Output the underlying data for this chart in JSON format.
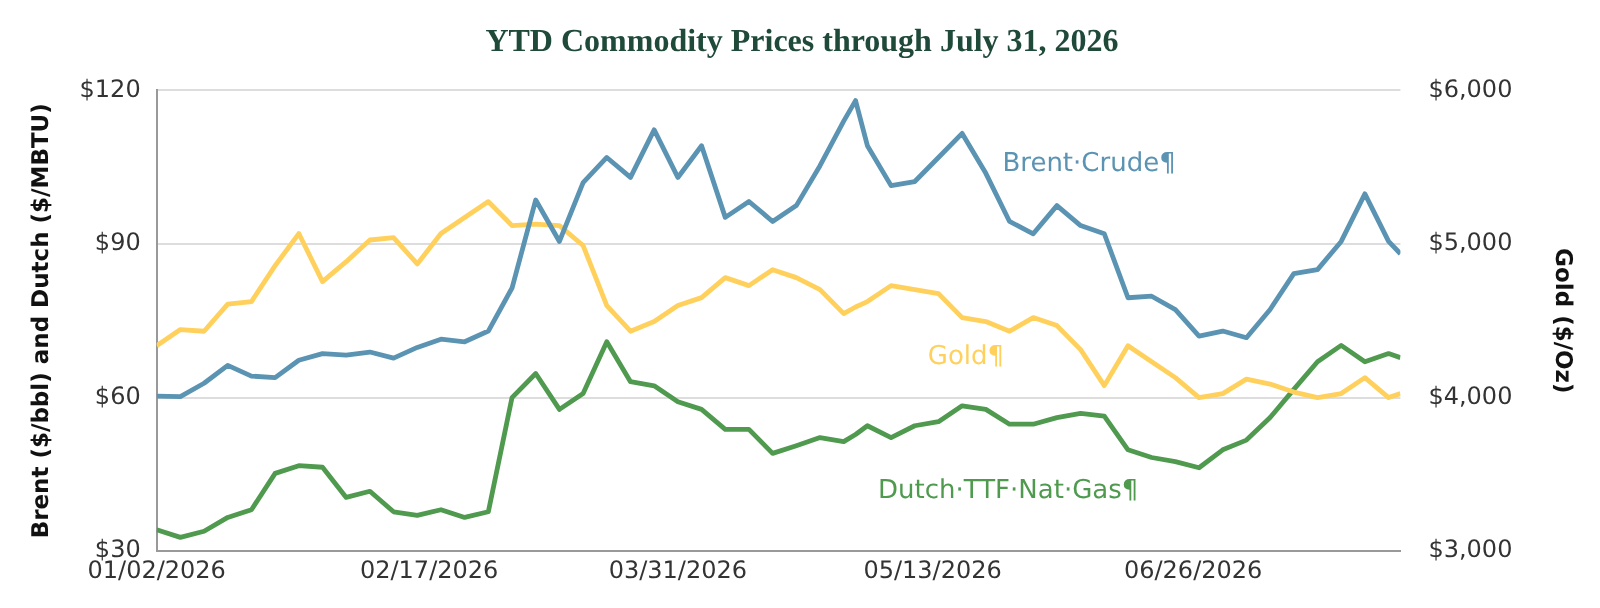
{
  "chart_data": {
    "type": "line",
    "title": "YTD Commodity Prices through July 31, 2026",
    "ylabel": "Brent ($/bbl) and Dutch ($/MBTU)",
    "y2label": "Gold ($/Oz)",
    "x": [
      "2026-01-02",
      "2026-01-06",
      "2026-01-10",
      "2026-01-14",
      "2026-01-18",
      "2026-01-22",
      "2026-01-26",
      "2026-01-30",
      "2026-02-03",
      "2026-02-07",
      "2026-02-11",
      "2026-02-15",
      "2026-02-19",
      "2026-02-23",
      "2026-02-27",
      "2026-03-03",
      "2026-03-07",
      "2026-03-11",
      "2026-03-15",
      "2026-03-19",
      "2026-03-23",
      "2026-03-27",
      "2026-03-31",
      "2026-04-04",
      "2026-04-08",
      "2026-04-12",
      "2026-04-16",
      "2026-04-20",
      "2026-04-24",
      "2026-04-28",
      "2026-04-30",
      "2026-05-02",
      "2026-05-06",
      "2026-05-10",
      "2026-05-14",
      "2026-05-18",
      "2026-05-22",
      "2026-05-26",
      "2026-05-30",
      "2026-06-03",
      "2026-06-07",
      "2026-06-11",
      "2026-06-15",
      "2026-06-19",
      "2026-06-23",
      "2026-06-27",
      "2026-07-01",
      "2026-07-05",
      "2026-07-09",
      "2026-07-13",
      "2026-07-17",
      "2026-07-21",
      "2026-07-25",
      "2026-07-29",
      "2026-07-31"
    ],
    "series": [
      {
        "name": "Brent·Crude¶",
        "color": "#5b93b3",
        "values": [
          60.3,
          60.2,
          62.8,
          66.3,
          64.2,
          63.9,
          67.3,
          68.6,
          68.3,
          68.9,
          67.7,
          69.8,
          71.4,
          70.9,
          73,
          81.4,
          98.6,
          90.5,
          102,
          106.9,
          103,
          112.3,
          103,
          109.2,
          95.2,
          98.3,
          94.4,
          97.5,
          105.3,
          114,
          118,
          109.2,
          101.4,
          102.2,
          106.9,
          111.6,
          103.8,
          94.4,
          92,
          97.5,
          93.6,
          92,
          79.5,
          79.8,
          77.2,
          72,
          73,
          71.7,
          77.2,
          84.2,
          85,
          90.5,
          99.8,
          90.5,
          88.1
        ]
      },
      {
        "name": "Gold¶",
        "color": "#ffd15c",
        "axis": "y2",
        "values": [
          4338,
          4443,
          4432,
          4609,
          4625,
          4859,
          5068,
          4755,
          4885,
          5026,
          5042,
          4870,
          5068,
          5172,
          5276,
          5120,
          5130,
          5120,
          4990,
          4599,
          4432,
          4495,
          4599,
          4651,
          4781,
          4729,
          4833,
          4781,
          4703,
          4547,
          4590,
          4625,
          4729,
          4703,
          4677,
          4521,
          4495,
          4432,
          4521,
          4469,
          4312,
          4078,
          4338,
          4234,
          4130,
          4000,
          4026,
          4120,
          4088,
          4036,
          4000,
          4026,
          4130,
          4000,
          4026
        ]
      },
      {
        "name": "Dutch·TTF·Nat·Gas¶",
        "color": "#4f9a4f",
        "values": [
          34.2,
          32.7,
          33.9,
          36.6,
          38.1,
          45.2,
          46.7,
          46.4,
          40.5,
          41.7,
          37.7,
          37,
          38.1,
          36.6,
          37.7,
          60,
          64.7,
          57.7,
          60.8,
          70.9,
          63.1,
          62.3,
          59.2,
          57.7,
          53.8,
          53.8,
          49.1,
          50.6,
          52.2,
          51.4,
          52.8,
          54.5,
          52.2,
          54.5,
          55.3,
          58.4,
          57.7,
          54.8,
          54.8,
          56.1,
          56.9,
          56.4,
          49.8,
          48.3,
          47.5,
          46.3,
          49.8,
          51.7,
          56.1,
          61.6,
          67,
          70.2,
          67,
          68.6,
          67.8
        ]
      }
    ],
    "xlim": [
      "2026-01-02",
      "2026-07-31"
    ],
    "xticks": [
      {
        "value": "2026-01-02",
        "label": "01/02/2026"
      },
      {
        "value": "2026-02-17",
        "label": "02/17/2026"
      },
      {
        "value": "2026-03-31",
        "label": "03/31/2026"
      },
      {
        "value": "2026-05-13",
        "label": "05/13/2026"
      },
      {
        "value": "2026-06-26",
        "label": "06/26/2026"
      }
    ],
    "ylim": [
      30,
      120
    ],
    "yticks": [
      {
        "value": 30,
        "label": "$30"
      },
      {
        "value": 60,
        "label": "$60"
      },
      {
        "value": 90,
        "label": "$90"
      },
      {
        "value": 120,
        "label": "$120"
      }
    ],
    "y2lim": [
      3000,
      6000
    ],
    "y2ticks": [
      {
        "value": 3000,
        "label": "$3,000"
      },
      {
        "value": 4000,
        "label": "$4,000"
      },
      {
        "value": 5000,
        "label": "$5,000"
      },
      {
        "value": 6000,
        "label": "$6,000"
      }
    ],
    "grid": "y",
    "legend": false,
    "marker": "none",
    "line_style": "solid"
  }
}
